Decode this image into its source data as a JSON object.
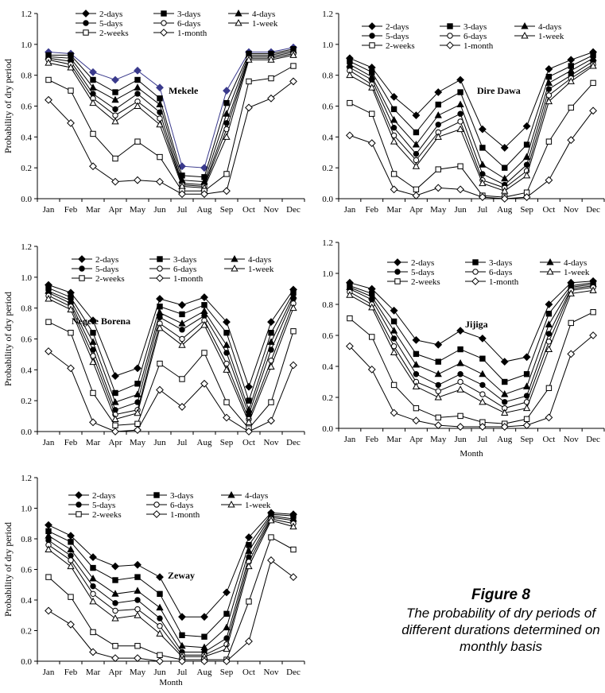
{
  "figure": {
    "caption_title": "Figure 8",
    "caption_text": "The probability of dry periods of different durations determined on monthly basis"
  },
  "legend_order": [
    "2-days",
    "3-days",
    "4-days",
    "5-days",
    "6-days",
    "1-week",
    "2-weeks",
    "1-month"
  ],
  "series_markers": {
    "2-days": "filled-diamond",
    "3-days": "filled-square",
    "4-days": "filled-triangle",
    "5-days": "filled-circle",
    "6-days": "open-circle",
    "1-week": "open-triangle",
    "2-weeks": "open-square",
    "1-month": "open-diamond"
  },
  "colors": {
    "line": "#000000",
    "first_panel_top_line": "#3a3a8c",
    "background": "#ffffff"
  },
  "chart_data": [
    {
      "type": "line",
      "station": "Mekele",
      "ylabel": "Probability of dry period",
      "xlabel": "",
      "ylim": [
        0,
        1.2
      ],
      "yticks": [
        "0.0",
        "0.2",
        "0.4",
        "0.6",
        "0.8",
        "1.0",
        "1.2"
      ],
      "categories": [
        "Jan",
        "Feb",
        "Mar",
        "Apr",
        "May",
        "Jun",
        "Jul",
        "Aug",
        "Sep",
        "Oct",
        "Nov",
        "Dec"
      ],
      "series": [
        {
          "name": "2-days",
          "values": [
            0.95,
            0.94,
            0.82,
            0.77,
            0.83,
            0.72,
            0.21,
            0.2,
            0.7,
            0.95,
            0.95,
            0.98
          ]
        },
        {
          "name": "3-days",
          "values": [
            0.93,
            0.93,
            0.77,
            0.69,
            0.77,
            0.65,
            0.15,
            0.14,
            0.62,
            0.94,
            0.94,
            0.97
          ]
        },
        {
          "name": "4-days",
          "values": [
            0.92,
            0.91,
            0.72,
            0.64,
            0.72,
            0.61,
            0.12,
            0.11,
            0.55,
            0.93,
            0.93,
            0.96
          ]
        },
        {
          "name": "5-days",
          "values": [
            0.91,
            0.89,
            0.68,
            0.58,
            0.68,
            0.56,
            0.1,
            0.09,
            0.49,
            0.92,
            0.92,
            0.95
          ]
        },
        {
          "name": "6-days",
          "values": [
            0.9,
            0.87,
            0.65,
            0.54,
            0.63,
            0.52,
            0.09,
            0.08,
            0.45,
            0.91,
            0.91,
            0.94
          ]
        },
        {
          "name": "1-week",
          "values": [
            0.88,
            0.85,
            0.62,
            0.5,
            0.6,
            0.48,
            0.08,
            0.07,
            0.4,
            0.9,
            0.9,
            0.93
          ]
        },
        {
          "name": "2-weeks",
          "values": [
            0.77,
            0.7,
            0.42,
            0.26,
            0.37,
            0.27,
            0.05,
            0.05,
            0.16,
            0.76,
            0.78,
            0.86
          ]
        },
        {
          "name": "1-month",
          "values": [
            0.64,
            0.49,
            0.21,
            0.11,
            0.12,
            0.11,
            0.03,
            0.03,
            0.05,
            0.59,
            0.65,
            0.76
          ]
        }
      ]
    },
    {
      "type": "line",
      "station": "Dire Dawa",
      "ylabel": "",
      "xlabel": "",
      "ylim": [
        0,
        1.2
      ],
      "yticks": [
        "0.0",
        "0.2",
        "0.4",
        "0.6",
        "0.8",
        "1.0",
        "1.2"
      ],
      "categories": [
        "Jan",
        "Feb",
        "Mar",
        "Apr",
        "May",
        "Jun",
        "Jul",
        "Aug",
        "Sep",
        "Oct",
        "Nov",
        "Dec"
      ],
      "series": [
        {
          "name": "2-days",
          "values": [
            0.91,
            0.85,
            0.66,
            0.54,
            0.69,
            0.77,
            0.45,
            0.33,
            0.47,
            0.84,
            0.9,
            0.95
          ]
        },
        {
          "name": "3-days",
          "values": [
            0.89,
            0.82,
            0.58,
            0.43,
            0.61,
            0.69,
            0.33,
            0.2,
            0.35,
            0.79,
            0.86,
            0.93
          ]
        },
        {
          "name": "4-days",
          "values": [
            0.87,
            0.79,
            0.51,
            0.35,
            0.54,
            0.61,
            0.22,
            0.13,
            0.27,
            0.75,
            0.83,
            0.91
          ]
        },
        {
          "name": "5-days",
          "values": [
            0.85,
            0.77,
            0.46,
            0.29,
            0.48,
            0.55,
            0.16,
            0.09,
            0.22,
            0.71,
            0.8,
            0.89
          ]
        },
        {
          "name": "6-days",
          "values": [
            0.83,
            0.74,
            0.41,
            0.25,
            0.43,
            0.5,
            0.12,
            0.07,
            0.18,
            0.67,
            0.78,
            0.87
          ]
        },
        {
          "name": "1-week",
          "values": [
            0.8,
            0.72,
            0.37,
            0.21,
            0.4,
            0.45,
            0.1,
            0.05,
            0.15,
            0.63,
            0.76,
            0.86
          ]
        },
        {
          "name": "2-weeks",
          "values": [
            0.62,
            0.55,
            0.16,
            0.06,
            0.19,
            0.21,
            0.02,
            0.01,
            0.04,
            0.37,
            0.59,
            0.75
          ]
        },
        {
          "name": "1-month",
          "values": [
            0.41,
            0.36,
            0.06,
            0.02,
            0.07,
            0.06,
            0.01,
            0.0,
            0.01,
            0.12,
            0.38,
            0.57
          ]
        }
      ]
    },
    {
      "type": "line",
      "station": "Negele Borena",
      "ylabel": "Probability of dry period",
      "xlabel": "",
      "ylim": [
        0,
        1.2
      ],
      "yticks": [
        "0.0",
        "0.2",
        "0.4",
        "0.6",
        "0.8",
        "1.0",
        "1.2"
      ],
      "categories": [
        "Jan",
        "Feb",
        "Mar",
        "Apr",
        "May",
        "Jun",
        "Jul",
        "Aug",
        "Sep",
        "Oct",
        "Nov",
        "Dec"
      ],
      "series": [
        {
          "name": "2-days",
          "values": [
            0.95,
            0.9,
            0.72,
            0.36,
            0.41,
            0.86,
            0.82,
            0.87,
            0.71,
            0.29,
            0.71,
            0.92
          ]
        },
        {
          "name": "3-days",
          "values": [
            0.93,
            0.87,
            0.64,
            0.25,
            0.31,
            0.81,
            0.76,
            0.82,
            0.64,
            0.2,
            0.64,
            0.9
          ]
        },
        {
          "name": "4-days",
          "values": [
            0.91,
            0.85,
            0.58,
            0.19,
            0.24,
            0.77,
            0.7,
            0.78,
            0.56,
            0.14,
            0.58,
            0.88
          ]
        },
        {
          "name": "5-days",
          "values": [
            0.9,
            0.83,
            0.53,
            0.14,
            0.19,
            0.74,
            0.66,
            0.75,
            0.51,
            0.11,
            0.53,
            0.86
          ]
        },
        {
          "name": "6-days",
          "values": [
            0.88,
            0.81,
            0.49,
            0.11,
            0.14,
            0.7,
            0.6,
            0.72,
            0.44,
            0.08,
            0.46,
            0.83
          ]
        },
        {
          "name": "1-week",
          "values": [
            0.86,
            0.79,
            0.45,
            0.08,
            0.12,
            0.67,
            0.56,
            0.69,
            0.4,
            0.06,
            0.42,
            0.8
          ]
        },
        {
          "name": "2-weeks",
          "values": [
            0.71,
            0.64,
            0.25,
            0.04,
            0.05,
            0.44,
            0.34,
            0.51,
            0.19,
            0.02,
            0.19,
            0.65
          ]
        },
        {
          "name": "1-month",
          "values": [
            0.52,
            0.41,
            0.06,
            0.0,
            0.01,
            0.27,
            0.16,
            0.31,
            0.09,
            0.0,
            0.07,
            0.43
          ]
        }
      ]
    },
    {
      "type": "line",
      "station": "Jijiga",
      "ylabel": "",
      "xlabel": "Month",
      "ylim": [
        0,
        1.2
      ],
      "yticks": [
        "0.0",
        "0.2",
        "0.4",
        "0.6",
        "0.8",
        "1.0",
        "1.2"
      ],
      "categories": [
        "Jan",
        "Feb",
        "Mar",
        "Apr",
        "May",
        "Jun",
        "Jul",
        "Aug",
        "Sep",
        "Oct",
        "Nov",
        "Dec"
      ],
      "series": [
        {
          "name": "2-days",
          "values": [
            0.94,
            0.9,
            0.76,
            0.57,
            0.54,
            0.63,
            0.58,
            0.43,
            0.46,
            0.8,
            0.94,
            0.95
          ]
        },
        {
          "name": "3-days",
          "values": [
            0.92,
            0.87,
            0.69,
            0.48,
            0.43,
            0.51,
            0.45,
            0.3,
            0.35,
            0.74,
            0.92,
            0.94
          ]
        },
        {
          "name": "4-days",
          "values": [
            0.91,
            0.85,
            0.63,
            0.41,
            0.35,
            0.42,
            0.35,
            0.22,
            0.27,
            0.67,
            0.91,
            0.93
          ]
        },
        {
          "name": "5-days",
          "values": [
            0.9,
            0.83,
            0.58,
            0.35,
            0.28,
            0.35,
            0.28,
            0.17,
            0.21,
            0.61,
            0.9,
            0.92
          ]
        },
        {
          "name": "6-days",
          "values": [
            0.88,
            0.8,
            0.53,
            0.3,
            0.24,
            0.3,
            0.22,
            0.13,
            0.17,
            0.56,
            0.89,
            0.91
          ]
        },
        {
          "name": "1-week",
          "values": [
            0.86,
            0.78,
            0.49,
            0.27,
            0.2,
            0.25,
            0.17,
            0.1,
            0.13,
            0.51,
            0.87,
            0.89
          ]
        },
        {
          "name": "2-weeks",
          "values": [
            0.71,
            0.59,
            0.28,
            0.13,
            0.07,
            0.08,
            0.04,
            0.03,
            0.06,
            0.26,
            0.68,
            0.75
          ]
        },
        {
          "name": "1-month",
          "values": [
            0.53,
            0.38,
            0.1,
            0.05,
            0.02,
            0.01,
            0.01,
            0.01,
            0.02,
            0.07,
            0.48,
            0.6
          ]
        }
      ]
    },
    {
      "type": "line",
      "station": "Zeway",
      "ylabel": "Probability of dry period",
      "xlabel": "Month",
      "ylim": [
        0,
        1.2
      ],
      "yticks": [
        "0.0",
        "0.2",
        "0.4",
        "0.6",
        "0.8",
        "1.0",
        "1.2"
      ],
      "categories": [
        "Jan",
        "Feb",
        "Mar",
        "Apr",
        "May",
        "Jun",
        "Jul",
        "Aug",
        "Sep",
        "Oct",
        "Nov",
        "Dec"
      ],
      "series": [
        {
          "name": "2-days",
          "values": [
            0.89,
            0.82,
            0.68,
            0.62,
            0.63,
            0.55,
            0.29,
            0.29,
            0.45,
            0.81,
            0.97,
            0.96
          ]
        },
        {
          "name": "3-days",
          "values": [
            0.85,
            0.78,
            0.61,
            0.53,
            0.55,
            0.44,
            0.17,
            0.16,
            0.31,
            0.76,
            0.96,
            0.95
          ]
        },
        {
          "name": "4-days",
          "values": [
            0.82,
            0.73,
            0.54,
            0.44,
            0.46,
            0.35,
            0.1,
            0.09,
            0.22,
            0.72,
            0.95,
            0.93
          ]
        },
        {
          "name": "5-days",
          "values": [
            0.79,
            0.69,
            0.49,
            0.38,
            0.4,
            0.28,
            0.06,
            0.06,
            0.15,
            0.68,
            0.94,
            0.92
          ]
        },
        {
          "name": "6-days",
          "values": [
            0.76,
            0.66,
            0.44,
            0.33,
            0.34,
            0.23,
            0.04,
            0.04,
            0.11,
            0.65,
            0.93,
            0.9
          ]
        },
        {
          "name": "1-week",
          "values": [
            0.73,
            0.62,
            0.39,
            0.28,
            0.3,
            0.18,
            0.03,
            0.03,
            0.08,
            0.62,
            0.92,
            0.88
          ]
        },
        {
          "name": "2-weeks",
          "values": [
            0.55,
            0.42,
            0.19,
            0.1,
            0.1,
            0.04,
            0.01,
            0.01,
            0.01,
            0.39,
            0.81,
            0.73
          ]
        },
        {
          "name": "1-month",
          "values": [
            0.33,
            0.24,
            0.06,
            0.02,
            0.02,
            0.0,
            0.0,
            0.0,
            0.0,
            0.13,
            0.66,
            0.55
          ]
        }
      ]
    }
  ]
}
